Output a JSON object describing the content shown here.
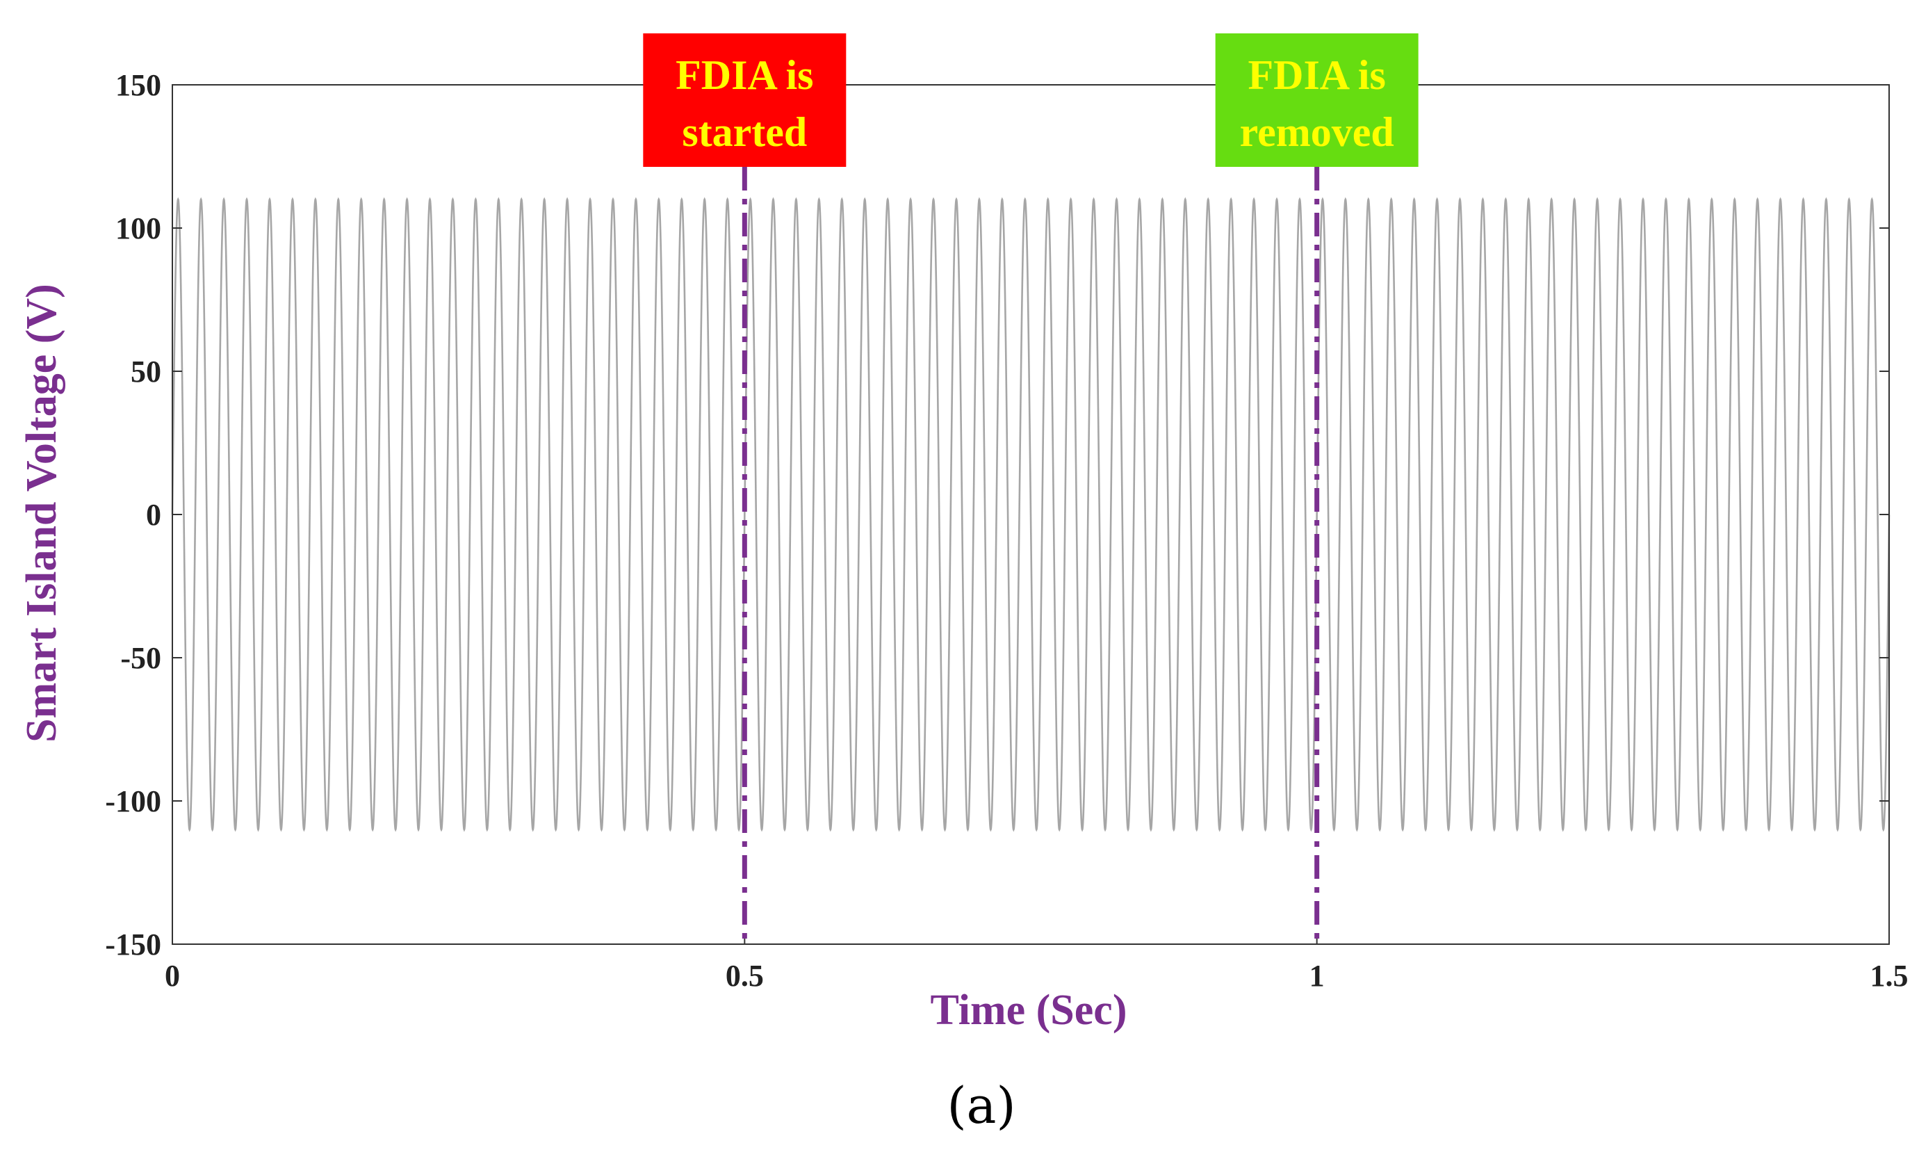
{
  "chart_data": {
    "type": "line",
    "xlabel": "Time (Sec)",
    "ylabel": "Smart Island Voltage (V)",
    "xlim": [
      0,
      1.5
    ],
    "ylim": [
      -150,
      150
    ],
    "xticks": [
      0,
      0.5,
      1,
      1.5
    ],
    "xtick_labels": [
      "0",
      "0.5",
      "1",
      "1.5"
    ],
    "yticks": [
      150,
      100,
      50,
      0,
      -50,
      -100,
      -150
    ],
    "ytick_labels": [
      "150",
      "100",
      "50",
      "0",
      "-50",
      "-100",
      "-150"
    ],
    "grid": false,
    "series": [
      {
        "kind": "sinusoid",
        "amplitude": 110,
        "frequency_hz": 50,
        "x_range": [
          0,
          1.5
        ],
        "color": "#a6a6a6"
      }
    ],
    "events": [
      {
        "x": 0.5,
        "label_lines": [
          "FDIA is",
          "started"
        ],
        "box_color": "#ff0000",
        "line_color": "#7a2f8f"
      },
      {
        "x": 1.0,
        "label_lines": [
          "FDIA is",
          "removed"
        ],
        "box_color": "#66dd11",
        "line_color": "#7a2f8f"
      }
    ],
    "text_color": "#ffff00"
  },
  "panel_label": "(a)"
}
